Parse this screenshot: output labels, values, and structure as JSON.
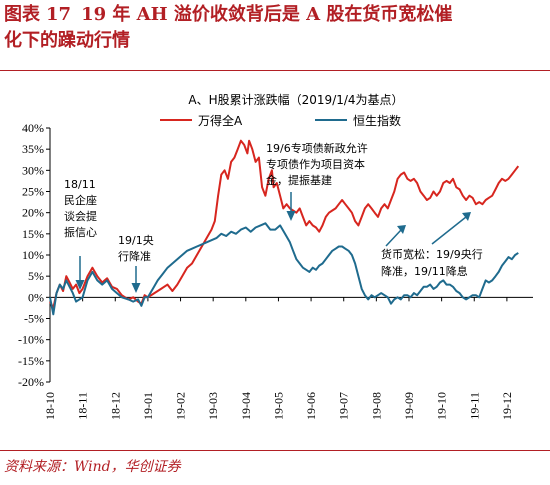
{
  "figure": {
    "label": "图表",
    "number": "17",
    "title_line1": "19 年 AH 溢价收敛背后是 A 股在货币宽松催",
    "title_line2": "化下的躁动行情",
    "source": "资料来源：Wind，华创证券"
  },
  "chart_data": {
    "type": "line",
    "title": "A、H股累计涨跌幅（2019/1/4为基点）",
    "ylim": [
      -20,
      40
    ],
    "yticks": [
      "-20%",
      "-15%",
      "-10%",
      "-5%",
      "0%",
      "5%",
      "10%",
      "15%",
      "20%",
      "25%",
      "30%",
      "35%",
      "40%"
    ],
    "xticks": [
      "18-10",
      "18-11",
      "18-12",
      "19-01",
      "19-02",
      "19-03",
      "19-04",
      "19-05",
      "19-06",
      "19-07",
      "19-08",
      "19-09",
      "19-10",
      "19-11",
      "19-12"
    ],
    "x_range": [
      0,
      14.8
    ],
    "legend_position": "top",
    "series": [
      {
        "name": "万得全A",
        "color": "#d7261f",
        "points": [
          [
            0.0,
            -1
          ],
          [
            0.1,
            -2.5
          ],
          [
            0.2,
            1
          ],
          [
            0.3,
            3
          ],
          [
            0.4,
            1.5
          ],
          [
            0.5,
            5
          ],
          [
            0.6,
            3.5
          ],
          [
            0.7,
            2
          ],
          [
            0.8,
            3
          ],
          [
            0.9,
            1
          ],
          [
            1.0,
            2
          ],
          [
            1.15,
            5
          ],
          [
            1.3,
            7
          ],
          [
            1.45,
            5
          ],
          [
            1.6,
            3.5
          ],
          [
            1.75,
            4.5
          ],
          [
            1.9,
            2.5
          ],
          [
            2.05,
            2
          ],
          [
            2.2,
            0.5
          ],
          [
            2.4,
            -0.5
          ],
          [
            2.55,
            0
          ],
          [
            2.7,
            -1
          ],
          [
            2.8,
            -1.5
          ],
          [
            2.9,
            0.5
          ],
          [
            3.0,
            0
          ],
          [
            3.2,
            1
          ],
          [
            3.4,
            2
          ],
          [
            3.6,
            3
          ],
          [
            3.75,
            1.5
          ],
          [
            3.9,
            3
          ],
          [
            4.05,
            5
          ],
          [
            4.2,
            7
          ],
          [
            4.35,
            8
          ],
          [
            4.5,
            10
          ],
          [
            4.65,
            12
          ],
          [
            4.8,
            14
          ],
          [
            4.95,
            16
          ],
          [
            5.05,
            18
          ],
          [
            5.15,
            24
          ],
          [
            5.25,
            29
          ],
          [
            5.35,
            30
          ],
          [
            5.45,
            28
          ],
          [
            5.55,
            32
          ],
          [
            5.65,
            33
          ],
          [
            5.75,
            35
          ],
          [
            5.85,
            37
          ],
          [
            5.95,
            36
          ],
          [
            6.05,
            34
          ],
          [
            6.1,
            37
          ],
          [
            6.2,
            35
          ],
          [
            6.3,
            32
          ],
          [
            6.4,
            33
          ],
          [
            6.5,
            26
          ],
          [
            6.6,
            24
          ],
          [
            6.7,
            28
          ],
          [
            6.8,
            30
          ],
          [
            6.85,
            26
          ],
          [
            6.95,
            27
          ],
          [
            7.05,
            24
          ],
          [
            7.15,
            21
          ],
          [
            7.25,
            22
          ],
          [
            7.35,
            21
          ],
          [
            7.45,
            20.5
          ],
          [
            7.55,
            20
          ],
          [
            7.65,
            21
          ],
          [
            7.75,
            19
          ],
          [
            7.85,
            17
          ],
          [
            7.95,
            18
          ],
          [
            8.05,
            17
          ],
          [
            8.15,
            16.5
          ],
          [
            8.25,
            15.5
          ],
          [
            8.35,
            17
          ],
          [
            8.45,
            19
          ],
          [
            8.55,
            20
          ],
          [
            8.65,
            20.5
          ],
          [
            8.75,
            21
          ],
          [
            8.85,
            22
          ],
          [
            8.95,
            23
          ],
          [
            9.05,
            22
          ],
          [
            9.15,
            21
          ],
          [
            9.25,
            20
          ],
          [
            9.35,
            18
          ],
          [
            9.45,
            17
          ],
          [
            9.55,
            19
          ],
          [
            9.65,
            21
          ],
          [
            9.75,
            22
          ],
          [
            9.85,
            21
          ],
          [
            9.95,
            20
          ],
          [
            10.05,
            19
          ],
          [
            10.15,
            21
          ],
          [
            10.25,
            22
          ],
          [
            10.35,
            21
          ],
          [
            10.45,
            23
          ],
          [
            10.55,
            25
          ],
          [
            10.65,
            28
          ],
          [
            10.75,
            29
          ],
          [
            10.85,
            29.5
          ],
          [
            10.95,
            28
          ],
          [
            11.05,
            27.5
          ],
          [
            11.15,
            28
          ],
          [
            11.25,
            27
          ],
          [
            11.35,
            25
          ],
          [
            11.45,
            24
          ],
          [
            11.55,
            23
          ],
          [
            11.65,
            23.5
          ],
          [
            11.75,
            25
          ],
          [
            11.85,
            24
          ],
          [
            11.95,
            25
          ],
          [
            12.05,
            27
          ],
          [
            12.15,
            27.5
          ],
          [
            12.25,
            27
          ],
          [
            12.35,
            28
          ],
          [
            12.45,
            26
          ],
          [
            12.55,
            25.5
          ],
          [
            12.65,
            24
          ],
          [
            12.75,
            23
          ],
          [
            12.85,
            24
          ],
          [
            12.95,
            23.5
          ],
          [
            13.05,
            22
          ],
          [
            13.15,
            22.5
          ],
          [
            13.25,
            22
          ],
          [
            13.35,
            23
          ],
          [
            13.45,
            23.5
          ],
          [
            13.55,
            24
          ],
          [
            13.65,
            25.5
          ],
          [
            13.75,
            27
          ],
          [
            13.85,
            28
          ],
          [
            13.95,
            27.5
          ],
          [
            14.05,
            28
          ],
          [
            14.15,
            29
          ],
          [
            14.25,
            30
          ],
          [
            14.35,
            31
          ]
        ]
      },
      {
        "name": "恒生指数",
        "color": "#1f6b8e",
        "points": [
          [
            0.0,
            0
          ],
          [
            0.1,
            -4
          ],
          [
            0.2,
            1
          ],
          [
            0.3,
            3
          ],
          [
            0.4,
            2
          ],
          [
            0.5,
            4
          ],
          [
            0.6,
            2.5
          ],
          [
            0.7,
            1
          ],
          [
            0.8,
            -1
          ],
          [
            0.9,
            -0.5
          ],
          [
            1.0,
            0
          ],
          [
            1.15,
            4
          ],
          [
            1.3,
            6
          ],
          [
            1.45,
            4
          ],
          [
            1.6,
            3
          ],
          [
            1.75,
            4
          ],
          [
            1.9,
            2
          ],
          [
            2.05,
            1
          ],
          [
            2.2,
            0
          ],
          [
            2.4,
            -0.5
          ],
          [
            2.55,
            -1
          ],
          [
            2.7,
            -0.5
          ],
          [
            2.8,
            -2
          ],
          [
            2.9,
            0
          ],
          [
            3.0,
            0
          ],
          [
            3.15,
            2
          ],
          [
            3.3,
            4
          ],
          [
            3.45,
            5.5
          ],
          [
            3.6,
            7
          ],
          [
            3.75,
            8
          ],
          [
            3.9,
            9
          ],
          [
            4.05,
            10
          ],
          [
            4.2,
            11
          ],
          [
            4.35,
            11.5
          ],
          [
            4.5,
            12
          ],
          [
            4.65,
            12.5
          ],
          [
            4.8,
            13
          ],
          [
            4.95,
            13.5
          ],
          [
            5.1,
            14
          ],
          [
            5.25,
            15
          ],
          [
            5.4,
            14.5
          ],
          [
            5.55,
            15.5
          ],
          [
            5.7,
            15
          ],
          [
            5.85,
            16
          ],
          [
            6.0,
            16.5
          ],
          [
            6.15,
            15.5
          ],
          [
            6.3,
            16.5
          ],
          [
            6.45,
            17
          ],
          [
            6.6,
            17.5
          ],
          [
            6.75,
            16
          ],
          [
            6.9,
            16
          ],
          [
            7.05,
            17
          ],
          [
            7.2,
            15
          ],
          [
            7.35,
            13
          ],
          [
            7.45,
            11
          ],
          [
            7.55,
            9
          ],
          [
            7.65,
            8
          ],
          [
            7.75,
            7
          ],
          [
            7.85,
            6.5
          ],
          [
            7.95,
            6
          ],
          [
            8.05,
            7
          ],
          [
            8.15,
            6.5
          ],
          [
            8.25,
            7.5
          ],
          [
            8.35,
            8
          ],
          [
            8.45,
            9
          ],
          [
            8.55,
            10
          ],
          [
            8.65,
            11
          ],
          [
            8.75,
            11.5
          ],
          [
            8.85,
            12
          ],
          [
            8.95,
            12
          ],
          [
            9.05,
            11.5
          ],
          [
            9.15,
            11
          ],
          [
            9.25,
            10
          ],
          [
            9.35,
            8
          ],
          [
            9.45,
            5
          ],
          [
            9.55,
            2
          ],
          [
            9.65,
            0.5
          ],
          [
            9.75,
            -0.5
          ],
          [
            9.85,
            0.5
          ],
          [
            9.95,
            0
          ],
          [
            10.05,
            0.5
          ],
          [
            10.15,
            1
          ],
          [
            10.25,
            0.5
          ],
          [
            10.35,
            0
          ],
          [
            10.45,
            -1.5
          ],
          [
            10.55,
            -0.5
          ],
          [
            10.65,
            0
          ],
          [
            10.75,
            -0.5
          ],
          [
            10.85,
            0.5
          ],
          [
            10.95,
            0.5
          ],
          [
            11.05,
            0
          ],
          [
            11.15,
            1
          ],
          [
            11.25,
            0.5
          ],
          [
            11.35,
            1.5
          ],
          [
            11.45,
            2.5
          ],
          [
            11.55,
            2.5
          ],
          [
            11.65,
            3
          ],
          [
            11.75,
            2
          ],
          [
            11.85,
            2.5
          ],
          [
            11.95,
            3.5
          ],
          [
            12.05,
            4
          ],
          [
            12.15,
            3
          ],
          [
            12.25,
            3
          ],
          [
            12.35,
            2.5
          ],
          [
            12.45,
            1.5
          ],
          [
            12.55,
            1
          ],
          [
            12.65,
            0
          ],
          [
            12.75,
            -0.5
          ],
          [
            12.85,
            0
          ],
          [
            12.95,
            0.5
          ],
          [
            13.05,
            0.5
          ],
          [
            13.15,
            0
          ],
          [
            13.25,
            2
          ],
          [
            13.35,
            4
          ],
          [
            13.45,
            3.5
          ],
          [
            13.55,
            4
          ],
          [
            13.65,
            5
          ],
          [
            13.75,
            6
          ],
          [
            13.85,
            7.5
          ],
          [
            13.95,
            8.5
          ],
          [
            14.05,
            9.5
          ],
          [
            14.15,
            9
          ],
          [
            14.25,
            10
          ],
          [
            14.35,
            10.5
          ]
        ]
      }
    ],
    "annotations": [
      {
        "id": "ann1",
        "lines": [
          "18/11",
          "民企座",
          "谈会提",
          "振信心"
        ]
      },
      {
        "id": "ann2",
        "lines": [
          "19/1央",
          "行降准"
        ]
      },
      {
        "id": "ann3",
        "lines": [
          "19/6专项债新政允许",
          "专项债作为项目资本",
          "金，提振基建"
        ]
      },
      {
        "id": "ann4",
        "lines": [
          "货币宽松：19/9央行",
          "降准，19/11降息"
        ]
      }
    ]
  }
}
